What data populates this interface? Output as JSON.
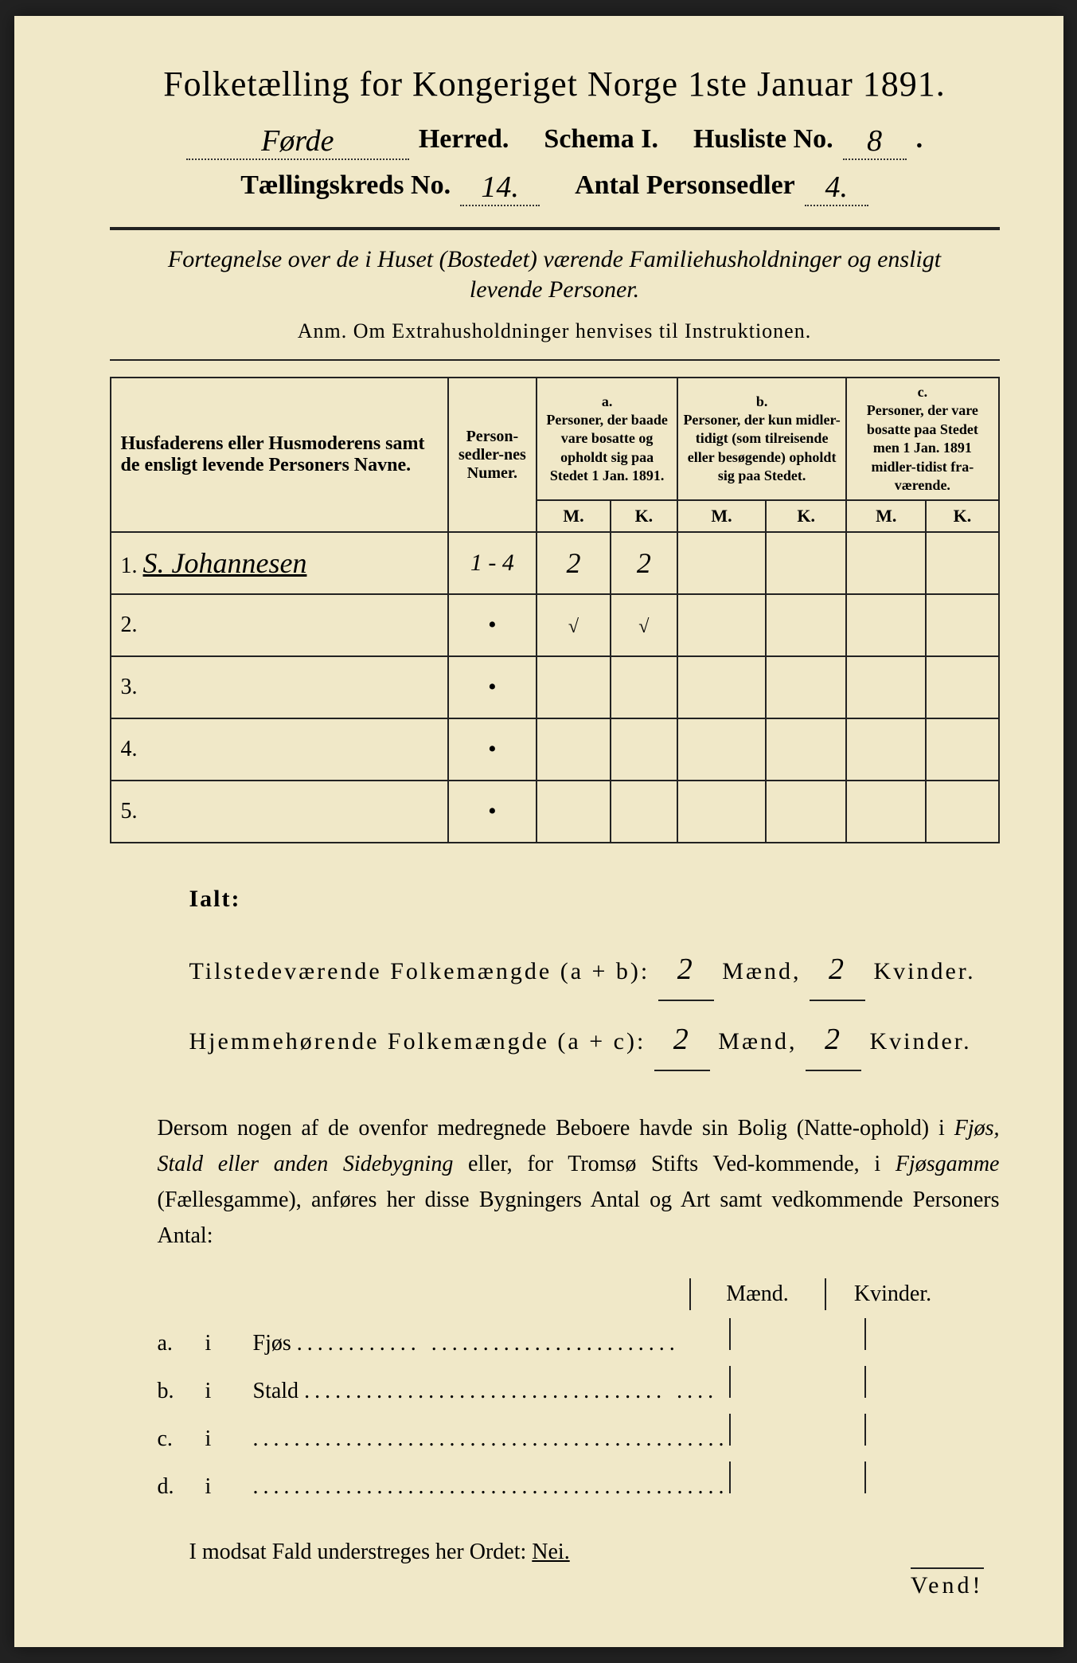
{
  "title": "Folketælling for Kongeriget Norge 1ste Januar 1891.",
  "header": {
    "herred_value": "Førde",
    "herred_label": "Herred.",
    "schema_label": "Schema I.",
    "husliste_label": "Husliste No.",
    "husliste_value": "8",
    "kreds_label": "Tællingskreds No.",
    "kreds_value": "14.",
    "antal_label": "Antal Personsedler",
    "antal_value": "4."
  },
  "subtitle1": "Fortegnelse over de i Huset (Bostedet) værende Familiehusholdninger og ensligt",
  "subtitle2": "levende Personer.",
  "anm": "Anm. Om Extrahusholdninger henvises til Instruktionen.",
  "table": {
    "col1": "Husfaderens eller Husmoderens samt de ensligt levende Personers Navne.",
    "col2": "Person-sedler-nes Numer.",
    "col_a_label": "a.",
    "col_a": "Personer, der baade vare bosatte og opholdt sig paa Stedet 1 Jan. 1891.",
    "col_b_label": "b.",
    "col_b": "Personer, der kun midler-tidigt (som tilreisende eller besøgende) opholdt sig paa Stedet.",
    "col_c_label": "c.",
    "col_c": "Personer, der vare bosatte paa Stedet men 1 Jan. 1891 midler-tidist fra-værende.",
    "m": "M.",
    "k": "K.",
    "rows": [
      {
        "num": "1.",
        "name": "S. Johannesen",
        "numer": "1 - 4",
        "am": "2",
        "ak": "2",
        "bm": "",
        "bk": "",
        "cm": "",
        "ck": ""
      },
      {
        "num": "2.",
        "name": "",
        "numer": "•",
        "am": "√",
        "ak": "√",
        "bm": "",
        "bk": "",
        "cm": "",
        "ck": ""
      },
      {
        "num": "3.",
        "name": "",
        "numer": "•",
        "am": "",
        "ak": "",
        "bm": "",
        "bk": "",
        "cm": "",
        "ck": ""
      },
      {
        "num": "4.",
        "name": "",
        "numer": "•",
        "am": "",
        "ak": "",
        "bm": "",
        "bk": "",
        "cm": "",
        "ck": ""
      },
      {
        "num": "5.",
        "name": "",
        "numer": "•",
        "am": "",
        "ak": "",
        "bm": "",
        "bk": "",
        "cm": "",
        "ck": ""
      }
    ]
  },
  "totals": {
    "ialt": "Ialt:",
    "line1_label": "Tilstedeværende Folkemængde (a + b):",
    "line1_m": "2",
    "line1_k": "2",
    "line2_label": "Hjemmehørende Folkemængde (a + c):",
    "line2_m": "2",
    "line2_k": "2",
    "maend": "Mænd,",
    "kvinder": "Kvinder."
  },
  "body_text": "Dersom nogen af de ovenfor medregnede Beboere havde sin Bolig (Natte-ophold) i Fjøs, Stald eller anden Sidebygning eller, for Tromsø Stifts Ved-kommende, i Fjøsgamme (Fællesgamme), anføres her disse Bygningers Antal og Art samt vedkommende Personers Antal:",
  "secondary": {
    "maend": "Mænd.",
    "kvinder": "Kvinder.",
    "rows": [
      {
        "label": "a.",
        "i": "i",
        "name": "Fjøs",
        "dots": "............ ........................"
      },
      {
        "label": "b.",
        "i": "i",
        "name": "Stald",
        "dots": "................................... ...."
      },
      {
        "label": "c.",
        "i": "i",
        "name": "",
        "dots": ".............................................."
      },
      {
        "label": "d.",
        "i": "i",
        "name": "",
        "dots": ".............................................."
      }
    ]
  },
  "final": "I modsat Fald understreges her Ordet: ",
  "nei": "Nei.",
  "vend": "Vend!"
}
